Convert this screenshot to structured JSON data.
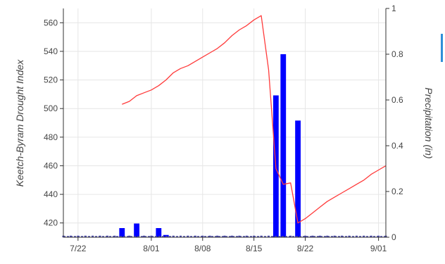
{
  "chart_data": {
    "type": "bar+line",
    "title": "",
    "xlabel": "",
    "ylabel_left": "Keetch-Byram Drought Index",
    "ylabel_right": "Precipitation (in)",
    "x_ticks": [
      "7/22",
      "8/01",
      "8/08",
      "8/15",
      "8/22",
      "9/01"
    ],
    "x_tick_dates": [
      "2023-07-22",
      "2023-08-01",
      "2023-08-08",
      "2023-08-15",
      "2023-08-22",
      "2023-09-01"
    ],
    "x_range": [
      "2023-07-20",
      "2023-09-02"
    ],
    "y_left_ticks": [
      420,
      440,
      460,
      480,
      500,
      520,
      540,
      560
    ],
    "y_left_range": [
      410,
      570
    ],
    "y_right_ticks": [
      0,
      0.2,
      0.4,
      0.6,
      0.8,
      1
    ],
    "y_right_range": [
      0,
      1
    ],
    "grid": true,
    "colors": {
      "kbdi_line": "#ff3b3b",
      "precip_bars": "#0000ff",
      "baseline": "#4a4aa8",
      "grid": "#e6e6e6"
    },
    "series": [
      {
        "name": "Keetch-Byram Drought Index",
        "kind": "line",
        "axis": "left",
        "points": [
          [
            "2023-07-28",
            503
          ],
          [
            "2023-07-29",
            505
          ],
          [
            "2023-07-30",
            509
          ],
          [
            "2023-07-31",
            511
          ],
          [
            "2023-08-01",
            513
          ],
          [
            "2023-08-02",
            516
          ],
          [
            "2023-08-03",
            520
          ],
          [
            "2023-08-04",
            525
          ],
          [
            "2023-08-05",
            528
          ],
          [
            "2023-08-06",
            530
          ],
          [
            "2023-08-07",
            533
          ],
          [
            "2023-08-08",
            536
          ],
          [
            "2023-08-09",
            539
          ],
          [
            "2023-08-10",
            542
          ],
          [
            "2023-08-11",
            546
          ],
          [
            "2023-08-12",
            551
          ],
          [
            "2023-08-13",
            555
          ],
          [
            "2023-08-14",
            558
          ],
          [
            "2023-08-15",
            562
          ],
          [
            "2023-08-16",
            565
          ],
          [
            "2023-08-17",
            527
          ],
          [
            "2023-08-18",
            458
          ],
          [
            "2023-08-19",
            447
          ],
          [
            "2023-08-20",
            448
          ],
          [
            "2023-08-21",
            420
          ],
          [
            "2023-08-22",
            423
          ],
          [
            "2023-08-23",
            427
          ],
          [
            "2023-08-24",
            431
          ],
          [
            "2023-08-25",
            435
          ],
          [
            "2023-08-26",
            438
          ],
          [
            "2023-08-27",
            441
          ],
          [
            "2023-08-28",
            444
          ],
          [
            "2023-08-29",
            447
          ],
          [
            "2023-08-30",
            450
          ],
          [
            "2023-08-31",
            454
          ],
          [
            "2023-09-01",
            457
          ],
          [
            "2023-09-02",
            460
          ]
        ]
      },
      {
        "name": "Precipitation (in)",
        "kind": "bar",
        "axis": "right",
        "points": [
          [
            "2023-07-20",
            0
          ],
          [
            "2023-07-21",
            0
          ],
          [
            "2023-07-22",
            0
          ],
          [
            "2023-07-23",
            0
          ],
          [
            "2023-07-24",
            0
          ],
          [
            "2023-07-25",
            0
          ],
          [
            "2023-07-26",
            0
          ],
          [
            "2023-07-27",
            0
          ],
          [
            "2023-07-28",
            0.04
          ],
          [
            "2023-07-29",
            0
          ],
          [
            "2023-07-30",
            0.06
          ],
          [
            "2023-07-31",
            0
          ],
          [
            "2023-08-01",
            0
          ],
          [
            "2023-08-02",
            0.04
          ],
          [
            "2023-08-03",
            0.01
          ],
          [
            "2023-08-04",
            0
          ],
          [
            "2023-08-05",
            0
          ],
          [
            "2023-08-06",
            0
          ],
          [
            "2023-08-07",
            0
          ],
          [
            "2023-08-08",
            0
          ],
          [
            "2023-08-09",
            0
          ],
          [
            "2023-08-10",
            0
          ],
          [
            "2023-08-11",
            0
          ],
          [
            "2023-08-12",
            0
          ],
          [
            "2023-08-13",
            0
          ],
          [
            "2023-08-14",
            0
          ],
          [
            "2023-08-15",
            0
          ],
          [
            "2023-08-16",
            0
          ],
          [
            "2023-08-17",
            0
          ],
          [
            "2023-08-18",
            0.62
          ],
          [
            "2023-08-19",
            0.8
          ],
          [
            "2023-08-20",
            0
          ],
          [
            "2023-08-21",
            0.51
          ],
          [
            "2023-08-22",
            0
          ],
          [
            "2023-08-23",
            0
          ],
          [
            "2023-08-24",
            0
          ],
          [
            "2023-08-25",
            0
          ],
          [
            "2023-08-26",
            0
          ],
          [
            "2023-08-27",
            0
          ],
          [
            "2023-08-28",
            0
          ],
          [
            "2023-08-29",
            0
          ],
          [
            "2023-08-30",
            0
          ],
          [
            "2023-08-31",
            0
          ],
          [
            "2023-09-01",
            0
          ],
          [
            "2023-09-02",
            0
          ]
        ]
      }
    ]
  }
}
